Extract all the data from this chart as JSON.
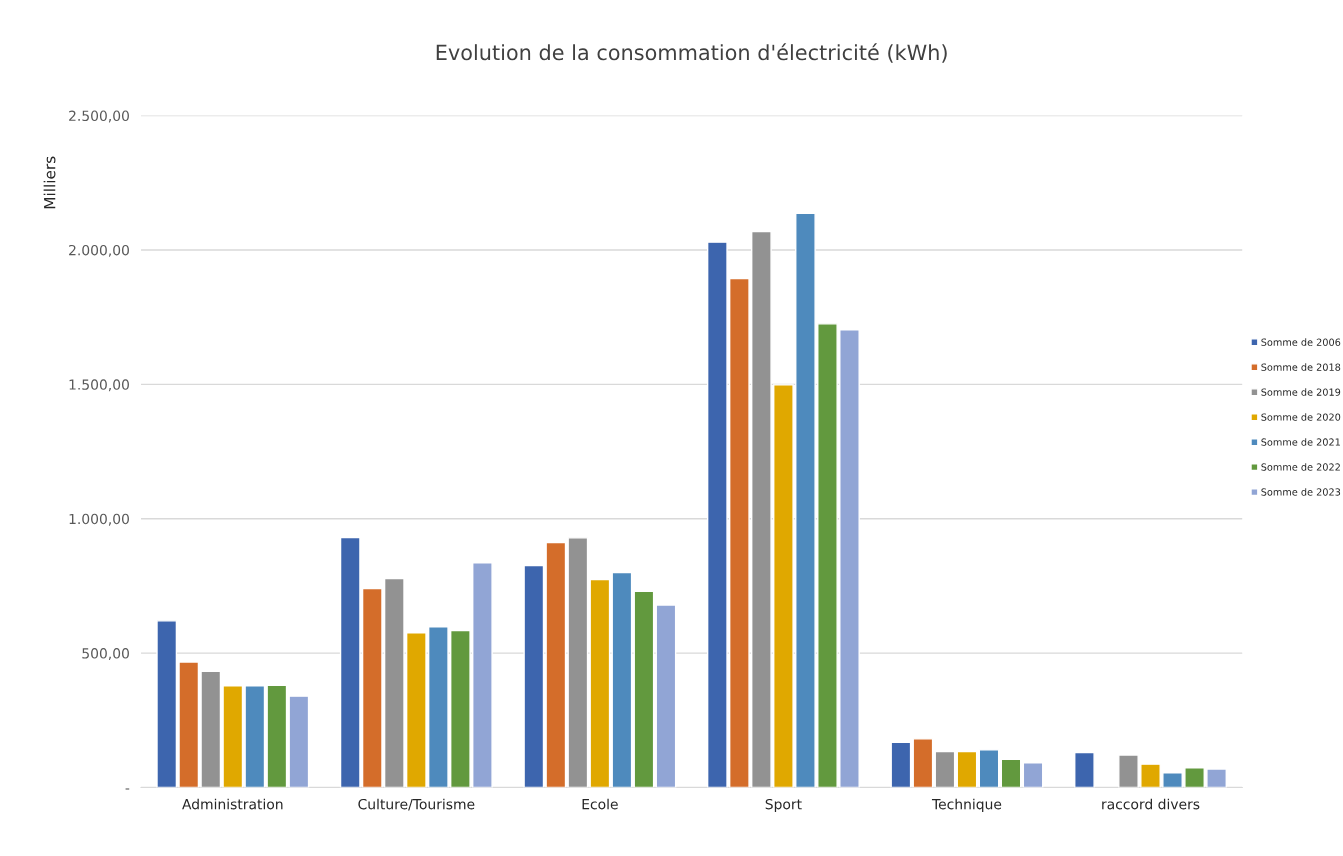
{
  "chart_data": {
    "type": "bar",
    "title": "Evolution de la consommation d'électricité (kWh)",
    "ylabel": "Milliers",
    "categories": [
      "Administration",
      "Culture/Tourisme",
      "Ecole",
      "Sport",
      "Technique",
      "raccord divers"
    ],
    "series": [
      {
        "name": "Somme de 2006",
        "color": "#3d65ae",
        "values": [
          620,
          930,
          826,
          2029,
          168,
          130
        ]
      },
      {
        "name": "Somme de 2018",
        "color": "#d46d2a",
        "values": [
          467,
          740,
          911,
          1894,
          181,
          null
        ]
      },
      {
        "name": "Somme de 2019",
        "color": "#929292",
        "values": [
          432,
          777,
          929,
          2068,
          134,
          121
        ]
      },
      {
        "name": "Somme de 2020",
        "color": "#e0a800",
        "values": [
          378,
          576,
          774,
          1498,
          134,
          87
        ]
      },
      {
        "name": "Somme de 2021",
        "color": "#4e8abd",
        "values": [
          378,
          598,
          800,
          2136,
          140,
          55
        ]
      },
      {
        "name": "Somme de 2022",
        "color": "#62993e",
        "values": [
          380,
          584,
          730,
          1725,
          105,
          73
        ]
      },
      {
        "name": "Somme de 2023",
        "color": "#91a5d5",
        "values": [
          340,
          836,
          679,
          1703,
          92,
          69
        ]
      }
    ],
    "ylim": [
      0,
      2500
    ],
    "yticks": [
      {
        "value": 0,
        "label": "-"
      },
      {
        "value": 500,
        "label": "500,00"
      },
      {
        "value": 1000,
        "label": "1.000,00"
      },
      {
        "value": 1500,
        "label": "1.500,00"
      },
      {
        "value": 2000,
        "label": "2.000,00"
      },
      {
        "value": 2500,
        "label": "2.500,00"
      }
    ],
    "grid": "y",
    "legend": "right"
  }
}
